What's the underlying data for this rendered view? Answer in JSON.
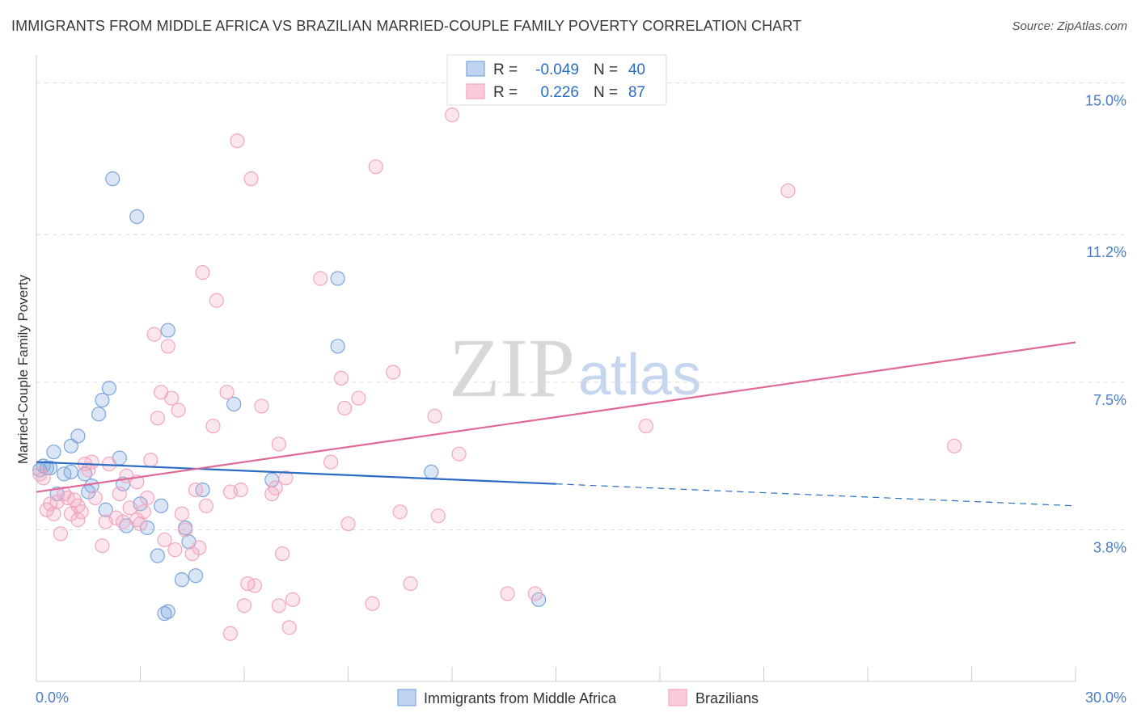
{
  "header": {
    "title": "IMMIGRANTS FROM MIDDLE AFRICA VS BRAZILIAN MARRIED-COUPLE FAMILY POVERTY CORRELATION CHART",
    "source": "Source: ZipAtlas.com"
  },
  "watermark": {
    "zip": "ZIP",
    "atlas": "atlas"
  },
  "chart_data": {
    "type": "scatter",
    "title": "IMMIGRANTS FROM MIDDLE AFRICA VS BRAZILIAN MARRIED-COUPLE FAMILY POVERTY CORRELATION CHART",
    "xlabel": "",
    "ylabel": "Married-Couple Family Poverty",
    "xlim": [
      0,
      30
    ],
    "ylim": [
      0,
      15.5
    ],
    "x_tick_labels": {
      "left": "0.0%",
      "right": "30.0%"
    },
    "y_ticks": [
      {
        "value": 3.8,
        "label": "3.8%"
      },
      {
        "value": 7.5,
        "label": "7.5%"
      },
      {
        "value": 11.2,
        "label": "11.2%"
      },
      {
        "value": 15.0,
        "label": "15.0%"
      }
    ],
    "legend": {
      "placement": "top-center",
      "rows": [
        {
          "r_label": "R =",
          "r_value": "-0.049",
          "n_label": "N =",
          "n_value": "40"
        },
        {
          "r_label": "R =",
          "r_value": "0.226",
          "n_label": "N =",
          "n_value": "87"
        }
      ]
    },
    "series": [
      {
        "name": "Immigrants from Middle Africa",
        "color": "#7aa6dd",
        "line_color": "#2b6dc4",
        "trend": {
          "x_start": 0,
          "y_start": 5.5,
          "x_solid_end": 15.0,
          "y_solid_end": 4.95,
          "x_end": 30,
          "y_end": 4.4
        },
        "points": [
          [
            0.2,
            5.4
          ],
          [
            0.4,
            5.35
          ],
          [
            0.6,
            4.7
          ],
          [
            0.5,
            5.75
          ],
          [
            0.8,
            5.2
          ],
          [
            1.0,
            5.25
          ],
          [
            1.0,
            5.9
          ],
          [
            1.2,
            6.15
          ],
          [
            1.4,
            5.2
          ],
          [
            1.5,
            4.75
          ],
          [
            1.6,
            4.9
          ],
          [
            1.8,
            6.7
          ],
          [
            1.9,
            7.05
          ],
          [
            2.1,
            7.35
          ],
          [
            2.2,
            12.6
          ],
          [
            2.4,
            5.6
          ],
          [
            2.5,
            4.95
          ],
          [
            2.6,
            3.9
          ],
          [
            2.0,
            4.3
          ],
          [
            2.9,
            11.65
          ],
          [
            3.0,
            4.45
          ],
          [
            3.2,
            3.85
          ],
          [
            3.5,
            3.15
          ],
          [
            3.6,
            4.4
          ],
          [
            3.8,
            1.75
          ],
          [
            3.8,
            8.8
          ],
          [
            3.7,
            1.7
          ],
          [
            4.2,
            2.55
          ],
          [
            4.3,
            3.85
          ],
          [
            4.4,
            3.5
          ],
          [
            4.6,
            2.65
          ],
          [
            4.8,
            4.8
          ],
          [
            5.7,
            6.95
          ],
          [
            6.8,
            5.05
          ],
          [
            8.7,
            10.1
          ],
          [
            8.7,
            8.4
          ],
          [
            11.4,
            5.25
          ],
          [
            14.5,
            2.05
          ],
          [
            0.3,
            5.35
          ],
          [
            0.1,
            5.3
          ]
        ]
      },
      {
        "name": "Brazilians",
        "color": "#f2a6c0",
        "line_color": "#e06a97",
        "trend": {
          "x_start": 0,
          "y_start": 4.75,
          "x_end": 30,
          "y_end": 8.5
        },
        "points": [
          [
            0.1,
            5.2
          ],
          [
            0.2,
            5.1
          ],
          [
            0.3,
            4.3
          ],
          [
            0.4,
            4.45
          ],
          [
            0.5,
            4.2
          ],
          [
            0.6,
            4.5
          ],
          [
            0.7,
            3.7
          ],
          [
            0.8,
            4.7
          ],
          [
            1.0,
            4.2
          ],
          [
            1.1,
            4.55
          ],
          [
            1.2,
            4.05
          ],
          [
            1.3,
            4.25
          ],
          [
            1.4,
            5.45
          ],
          [
            1.5,
            5.3
          ],
          [
            1.6,
            5.5
          ],
          [
            1.7,
            4.6
          ],
          [
            1.9,
            3.4
          ],
          [
            2.0,
            4.0
          ],
          [
            2.1,
            5.45
          ],
          [
            2.3,
            4.1
          ],
          [
            2.4,
            4.7
          ],
          [
            2.5,
            4.0
          ],
          [
            2.6,
            5.15
          ],
          [
            2.7,
            4.35
          ],
          [
            2.9,
            4.05
          ],
          [
            2.9,
            5.0
          ],
          [
            3.1,
            4.25
          ],
          [
            3.2,
            4.6
          ],
          [
            3.3,
            5.55
          ],
          [
            3.4,
            8.7
          ],
          [
            3.5,
            6.6
          ],
          [
            3.6,
            7.25
          ],
          [
            3.7,
            3.55
          ],
          [
            3.8,
            8.4
          ],
          [
            3.9,
            7.1
          ],
          [
            4.0,
            3.3
          ],
          [
            4.1,
            6.8
          ],
          [
            4.2,
            4.2
          ],
          [
            4.3,
            3.8
          ],
          [
            4.5,
            3.2
          ],
          [
            4.6,
            4.8
          ],
          [
            4.7,
            3.35
          ],
          [
            4.8,
            10.25
          ],
          [
            4.9,
            4.4
          ],
          [
            5.1,
            6.4
          ],
          [
            5.2,
            9.55
          ],
          [
            5.5,
            7.25
          ],
          [
            5.6,
            4.75
          ],
          [
            5.8,
            13.55
          ],
          [
            5.9,
            4.8
          ],
          [
            6.0,
            1.9
          ],
          [
            6.1,
            2.45
          ],
          [
            6.2,
            12.6
          ],
          [
            6.3,
            2.4
          ],
          [
            6.5,
            6.9
          ],
          [
            6.8,
            4.7
          ],
          [
            6.9,
            4.85
          ],
          [
            7.0,
            5.95
          ],
          [
            7.1,
            3.2
          ],
          [
            7.2,
            5.1
          ],
          [
            7.3,
            1.35
          ],
          [
            7.4,
            2.05
          ],
          [
            8.2,
            10.1
          ],
          [
            8.5,
            5.5
          ],
          [
            8.8,
            7.6
          ],
          [
            8.9,
            6.85
          ],
          [
            9.0,
            3.95
          ],
          [
            9.3,
            7.1
          ],
          [
            9.7,
            1.95
          ],
          [
            9.8,
            12.9
          ],
          [
            10.3,
            7.75
          ],
          [
            10.5,
            4.25
          ],
          [
            10.8,
            2.45
          ],
          [
            11.5,
            6.65
          ],
          [
            11.6,
            4.15
          ],
          [
            12.0,
            14.2
          ],
          [
            12.2,
            5.7
          ],
          [
            13.6,
            2.2
          ],
          [
            14.4,
            2.2
          ],
          [
            17.6,
            6.4
          ],
          [
            21.7,
            12.3
          ],
          [
            26.5,
            5.9
          ],
          [
            5.6,
            1.2
          ],
          [
            7.0,
            1.9
          ],
          [
            3.0,
            3.95
          ],
          [
            1.2,
            4.4
          ],
          [
            0.9,
            4.6
          ]
        ]
      }
    ]
  },
  "bottom_legend": {
    "items": [
      {
        "label": "Immigrants from Middle Africa",
        "color": "#7aa6dd"
      },
      {
        "label": "Brazilians",
        "color": "#f2a6c0"
      }
    ]
  }
}
